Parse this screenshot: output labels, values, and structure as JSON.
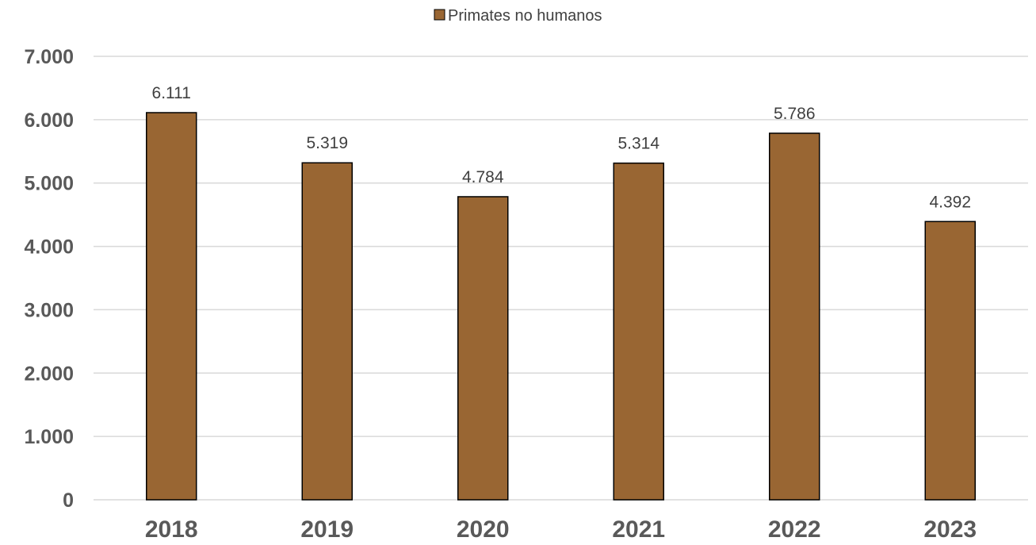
{
  "chart_data": {
    "type": "bar",
    "categories": [
      "2018",
      "2019",
      "2020",
      "2021",
      "2022",
      "2023"
    ],
    "series": [
      {
        "name": "Primates no humanos",
        "values": [
          6111,
          5319,
          4784,
          5314,
          5786,
          4392
        ],
        "color": "#996633"
      }
    ],
    "data_labels": [
      "6.111",
      "5.319",
      "4.784",
      "5.314",
      "5.786",
      "4.392"
    ],
    "y_ticks": [
      {
        "value": 0,
        "label": "0"
      },
      {
        "value": 1000,
        "label": "1.000"
      },
      {
        "value": 2000,
        "label": "2.000"
      },
      {
        "value": 3000,
        "label": "3.000"
      },
      {
        "value": 4000,
        "label": "4.000"
      },
      {
        "value": 5000,
        "label": "5.000"
      },
      {
        "value": 6000,
        "label": "6.000"
      },
      {
        "value": 7000,
        "label": "7.000"
      }
    ],
    "ylim": [
      0,
      7000
    ],
    "grid": true,
    "legend_position": "top-center",
    "title": "",
    "xlabel": "",
    "ylabel": ""
  }
}
